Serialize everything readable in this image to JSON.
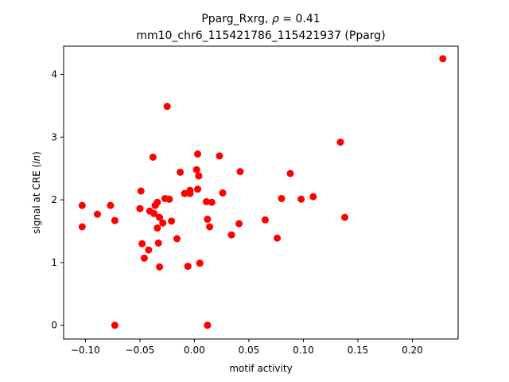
{
  "chart_data": {
    "type": "scatter",
    "title_line1_prefix": "Pparg_Rxrg, ",
    "title_line1_rho": "ρ",
    "title_line1_suffix": " = 0.41",
    "title_line2": "mm10_chr6_115421786_115421937 (Pparg)",
    "xlabel": "motif activity",
    "ylabel_prefix": "signal at CRE (",
    "ylabel_italic": "ln",
    "ylabel_suffix": ")",
    "xlim": [
      -0.12,
      0.242
    ],
    "ylim": [
      -0.22,
      4.45
    ],
    "xticks": [
      {
        "value": -0.1,
        "label": "−0.10"
      },
      {
        "value": -0.05,
        "label": "−0.05"
      },
      {
        "value": 0.0,
        "label": "0.00"
      },
      {
        "value": 0.05,
        "label": "0.05"
      },
      {
        "value": 0.1,
        "label": "0.10"
      },
      {
        "value": 0.15,
        "label": "0.15"
      },
      {
        "value": 0.2,
        "label": "0.20"
      }
    ],
    "yticks": [
      {
        "value": 0,
        "label": "0"
      },
      {
        "value": 1,
        "label": "1"
      },
      {
        "value": 2,
        "label": "2"
      },
      {
        "value": 3,
        "label": "3"
      },
      {
        "value": 4,
        "label": "4"
      }
    ],
    "point_color": "#ff0000",
    "grid": false,
    "points": [
      {
        "x": -0.103,
        "y": 1.91
      },
      {
        "x": -0.103,
        "y": 1.57
      },
      {
        "x": -0.089,
        "y": 1.77
      },
      {
        "x": -0.077,
        "y": 1.91
      },
      {
        "x": -0.073,
        "y": 1.67
      },
      {
        "x": -0.073,
        "y": 0.0
      },
      {
        "x": -0.05,
        "y": 1.86
      },
      {
        "x": -0.049,
        "y": 2.14
      },
      {
        "x": -0.048,
        "y": 1.3
      },
      {
        "x": -0.046,
        "y": 1.07
      },
      {
        "x": -0.042,
        "y": 1.2
      },
      {
        "x": -0.041,
        "y": 1.82
      },
      {
        "x": -0.038,
        "y": 2.68
      },
      {
        "x": -0.037,
        "y": 1.78
      },
      {
        "x": -0.036,
        "y": 1.91
      },
      {
        "x": -0.034,
        "y": 1.96
      },
      {
        "x": -0.034,
        "y": 1.55
      },
      {
        "x": -0.033,
        "y": 1.31
      },
      {
        "x": -0.032,
        "y": 1.72
      },
      {
        "x": -0.032,
        "y": 0.93
      },
      {
        "x": -0.029,
        "y": 1.63
      },
      {
        "x": -0.027,
        "y": 2.02
      },
      {
        "x": -0.025,
        "y": 3.49
      },
      {
        "x": -0.023,
        "y": 2.01
      },
      {
        "x": -0.021,
        "y": 1.66
      },
      {
        "x": -0.016,
        "y": 1.38
      },
      {
        "x": -0.013,
        "y": 2.44
      },
      {
        "x": -0.009,
        "y": 2.1
      },
      {
        "x": -0.006,
        "y": 0.94
      },
      {
        "x": -0.004,
        "y": 2.15
      },
      {
        "x": -0.004,
        "y": 2.1
      },
      {
        "x": 0.002,
        "y": 2.48
      },
      {
        "x": 0.003,
        "y": 2.73
      },
      {
        "x": 0.003,
        "y": 2.17
      },
      {
        "x": 0.004,
        "y": 2.38
      },
      {
        "x": 0.005,
        "y": 0.99
      },
      {
        "x": 0.011,
        "y": 1.97
      },
      {
        "x": 0.012,
        "y": 1.69
      },
      {
        "x": 0.012,
        "y": 0.0
      },
      {
        "x": 0.014,
        "y": 1.57
      },
      {
        "x": 0.016,
        "y": 1.96
      },
      {
        "x": 0.023,
        "y": 2.7
      },
      {
        "x": 0.026,
        "y": 2.11
      },
      {
        "x": 0.034,
        "y": 1.44
      },
      {
        "x": 0.041,
        "y": 1.62
      },
      {
        "x": 0.042,
        "y": 2.45
      },
      {
        "x": 0.065,
        "y": 1.68
      },
      {
        "x": 0.076,
        "y": 1.39
      },
      {
        "x": 0.08,
        "y": 2.02
      },
      {
        "x": 0.088,
        "y": 2.42
      },
      {
        "x": 0.098,
        "y": 2.01
      },
      {
        "x": 0.109,
        "y": 2.05
      },
      {
        "x": 0.134,
        "y": 2.92
      },
      {
        "x": 0.138,
        "y": 1.72
      },
      {
        "x": 0.228,
        "y": 4.25
      }
    ]
  }
}
